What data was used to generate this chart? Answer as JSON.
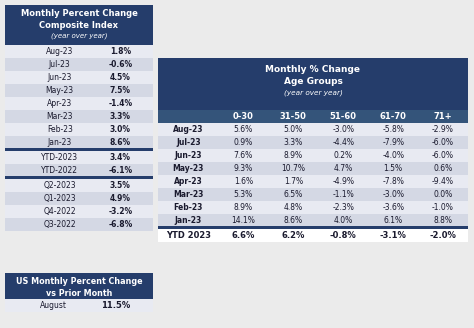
{
  "left_table_title": [
    "Monthly Percent Change",
    "Composite Index",
    "(year over year)"
  ],
  "left_table_rows": [
    [
      "Aug-23",
      "1.8%"
    ],
    [
      "Jul-23",
      "-0.6%"
    ],
    [
      "Jun-23",
      "4.5%"
    ],
    [
      "May-23",
      "7.5%"
    ],
    [
      "Apr-23",
      "-1.4%"
    ],
    [
      "Mar-23",
      "3.3%"
    ],
    [
      "Feb-23",
      "3.0%"
    ],
    [
      "Jan-23",
      "8.6%"
    ]
  ],
  "left_table_ytd": [
    [
      "YTD-2023",
      "3.4%"
    ],
    [
      "YTD-2022",
      "-6.1%"
    ]
  ],
  "left_table_quarterly": [
    [
      "Q2-2023",
      "3.5%"
    ],
    [
      "Q1-2023",
      "4.9%"
    ],
    [
      "Q4-2022",
      "-3.2%"
    ],
    [
      "Q3-2022",
      "-6.8%"
    ]
  ],
  "bottom_left_title": [
    "US Monthly Percent Change",
    "vs Prior Month"
  ],
  "bottom_left_row": [
    "August",
    "11.5%"
  ],
  "right_table_title": [
    "Monthly % Change",
    "Age Groups",
    "(year over year)"
  ],
  "right_table_col_headers": [
    "",
    "0-30",
    "31-50",
    "51-60",
    "61-70",
    "71+"
  ],
  "right_table_rows": [
    [
      "Aug-23",
      "5.6%",
      "5.0%",
      "-3.0%",
      "-5.8%",
      "-2.9%"
    ],
    [
      "Jul-23",
      "0.9%",
      "3.3%",
      "-4.4%",
      "-7.9%",
      "-6.0%"
    ],
    [
      "Jun-23",
      "7.6%",
      "8.9%",
      "0.2%",
      "-4.0%",
      "-6.0%"
    ],
    [
      "May-23",
      "9.3%",
      "10.7%",
      "4.7%",
      "1.5%",
      "0.6%"
    ],
    [
      "Apr-23",
      "1.6%",
      "1.7%",
      "-4.9%",
      "-7.8%",
      "-9.4%"
    ],
    [
      "Mar-23",
      "5.3%",
      "6.5%",
      "-1.1%",
      "-3.0%",
      "0.0%"
    ],
    [
      "Feb-23",
      "8.9%",
      "4.8%",
      "-2.3%",
      "-3.6%",
      "-1.0%"
    ],
    [
      "Jan-23",
      "14.1%",
      "8.6%",
      "4.0%",
      "6.1%",
      "8.8%"
    ]
  ],
  "right_table_ytd": [
    "YTD 2023",
    "6.6%",
    "6.2%",
    "-0.8%",
    "-3.1%",
    "-2.0%"
  ],
  "dark_navy": "#253d6b",
  "medium_blue": "#34547a",
  "light_gray": "#d4d8e4",
  "lighter_gray": "#e8eaf2",
  "white": "#ffffff",
  "bg_color": "#ebebeb",
  "text_dark": "#1a1a2e",
  "text_white": "#ffffff"
}
